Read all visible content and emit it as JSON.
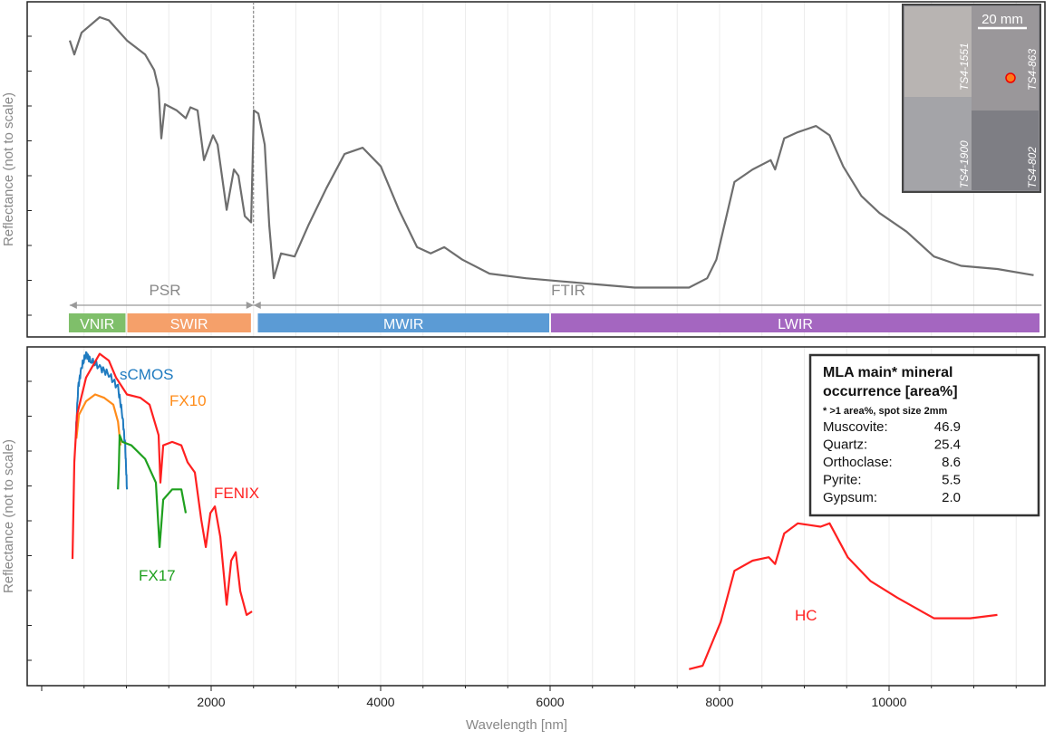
{
  "chart_data": [
    {
      "type": "line",
      "panel": "top",
      "ylabel": "Reflectance (not to scale)",
      "xlim": [
        0,
        11800
      ],
      "ylim": [
        0,
        100
      ],
      "series": [
        {
          "name": "PSR + FTIR",
          "color": "#6e6e6e",
          "x": [
            332,
            385,
            471,
            685,
            792,
            1006,
            1220,
            1327,
            1380,
            1412,
            1455,
            1594,
            1701,
            1755,
            1840,
            1915,
            2022,
            2076,
            2183,
            2268,
            2322,
            2397,
            2472,
            2504,
            2557,
            2632,
            2686,
            2739,
            2825,
            2985,
            3146,
            3360,
            3574,
            3788,
            4002,
            4216,
            4430,
            4590,
            4751,
            4965,
            5286,
            5714,
            6142,
            6570,
            6998,
            7640,
            7854,
            7961,
            8175,
            8389,
            8603,
            8656,
            8763,
            8924,
            9138,
            9298,
            9459,
            9673,
            9887,
            10208,
            10529,
            10850,
            11278,
            11706
          ],
          "y": [
            87.5,
            83,
            90,
            95,
            94,
            87.5,
            83,
            78,
            72,
            56,
            67,
            65,
            62.5,
            66,
            65,
            49,
            57,
            54,
            33,
            46,
            44,
            31,
            29,
            65,
            64,
            54,
            28,
            11,
            19,
            18,
            28,
            40,
            51,
            53,
            47,
            33,
            21,
            19,
            21,
            17,
            12.5,
            11,
            10,
            9,
            8,
            8,
            11,
            17,
            42,
            46,
            49,
            46,
            56,
            58,
            60,
            57,
            47,
            37.5,
            32,
            26,
            18,
            15,
            14,
            12
          ]
        }
      ],
      "ranges": [
        {
          "name": "PSR",
          "from": 330,
          "to": 2500
        },
        {
          "name": "FTIR",
          "from": 2500,
          "to": 11800
        }
      ],
      "bands": [
        {
          "name": "VNIR",
          "from": 310,
          "to": 1000,
          "color": "#7fbf6a"
        },
        {
          "name": "SWIR",
          "from": 1000,
          "to": 2480,
          "color": "#f5a06a"
        },
        {
          "name": "MWIR",
          "from": 2540,
          "to": 6000,
          "color": "#5b9bd5"
        },
        {
          "name": "LWIR",
          "from": 6000,
          "to": 11800,
          "color": "#a466c0"
        }
      ],
      "divider_x": 2500,
      "inset": {
        "scale_label": "20 mm",
        "samples": [
          "TS4-1551",
          "TS4-863",
          "TS4-1900",
          "TS4-802"
        ]
      }
    },
    {
      "type": "line",
      "panel": "bottom",
      "title": "",
      "xlabel": "Wavelength [nm]",
      "ylabel": "Reflectance (not to scale)",
      "xlim": [
        0,
        11800
      ],
      "ylim": [
        0,
        100
      ],
      "xticks": [
        2000,
        4000,
        6000,
        8000,
        10000
      ],
      "grid": true,
      "series": [
        {
          "name": "sCMOS",
          "color": "#1f7bc0",
          "noisy": true,
          "x": [
            400,
            430,
            470,
            524,
            578,
            685,
            792,
            900,
            952,
            985,
            1006
          ],
          "y": [
            71,
            86,
            92,
            96,
            94,
            92,
            90,
            86,
            78,
            69,
            56
          ]
        },
        {
          "name": "FX10",
          "color": "#ff8c1a",
          "x": [
            410,
            440,
            524,
            631,
            738,
            845,
            900,
            930
          ],
          "y": [
            71,
            78,
            82,
            84,
            83,
            81,
            76,
            69
          ]
        },
        {
          "name": "FENIX",
          "color": "#ff2020",
          "x": [
            364,
            385,
            417,
            524,
            685,
            792,
            877,
            1006,
            1166,
            1273,
            1380,
            1401,
            1434,
            1540,
            1648,
            1722,
            1808,
            1883,
            1937,
            1990,
            2044,
            2108,
            2183,
            2236,
            2290,
            2343,
            2418,
            2482
          ],
          "y": [
            35.5,
            64,
            78,
            89,
            96,
            94,
            89,
            84,
            83,
            81,
            72,
            58,
            69,
            70,
            69,
            64,
            61,
            47,
            39,
            49,
            51,
            42,
            22,
            35,
            37.5,
            26,
            19,
            20
          ]
        },
        {
          "name": "FX17",
          "color": "#1ea01e",
          "x": [
            900,
            910,
            920,
            952,
            1059,
            1220,
            1348,
            1391,
            1434,
            1540,
            1648,
            1701
          ],
          "y": [
            56,
            62,
            72,
            70,
            69,
            65,
            58,
            39,
            53,
            56,
            56,
            49
          ]
        },
        {
          "name": "HC",
          "color": "#ff2020",
          "x": [
            7640,
            7800,
            8014,
            8175,
            8389,
            8581,
            8656,
            8763,
            8924,
            9191,
            9298,
            9512,
            9780,
            10100,
            10529,
            10957,
            11278
          ],
          "y": [
            3,
            4,
            17,
            32,
            35,
            36,
            34,
            43,
            46,
            45,
            46,
            36,
            29,
            24,
            18,
            18,
            19
          ]
        }
      ],
      "legend_box": {
        "title_line1": "MLA main* mineral",
        "title_line2": "occurrence [area%]",
        "note": "* >1 area%, spot size 2mm",
        "rows": [
          {
            "mineral": "Muscovite:",
            "value": "46.9"
          },
          {
            "mineral": "Quartz:",
            "value": "25.4"
          },
          {
            "mineral": "Orthoclase:",
            "value": "8.6"
          },
          {
            "mineral": "Pyrite:",
            "value": "5.5"
          },
          {
            "mineral": "Gypsum:",
            "value": "2.0"
          }
        ]
      }
    }
  ]
}
